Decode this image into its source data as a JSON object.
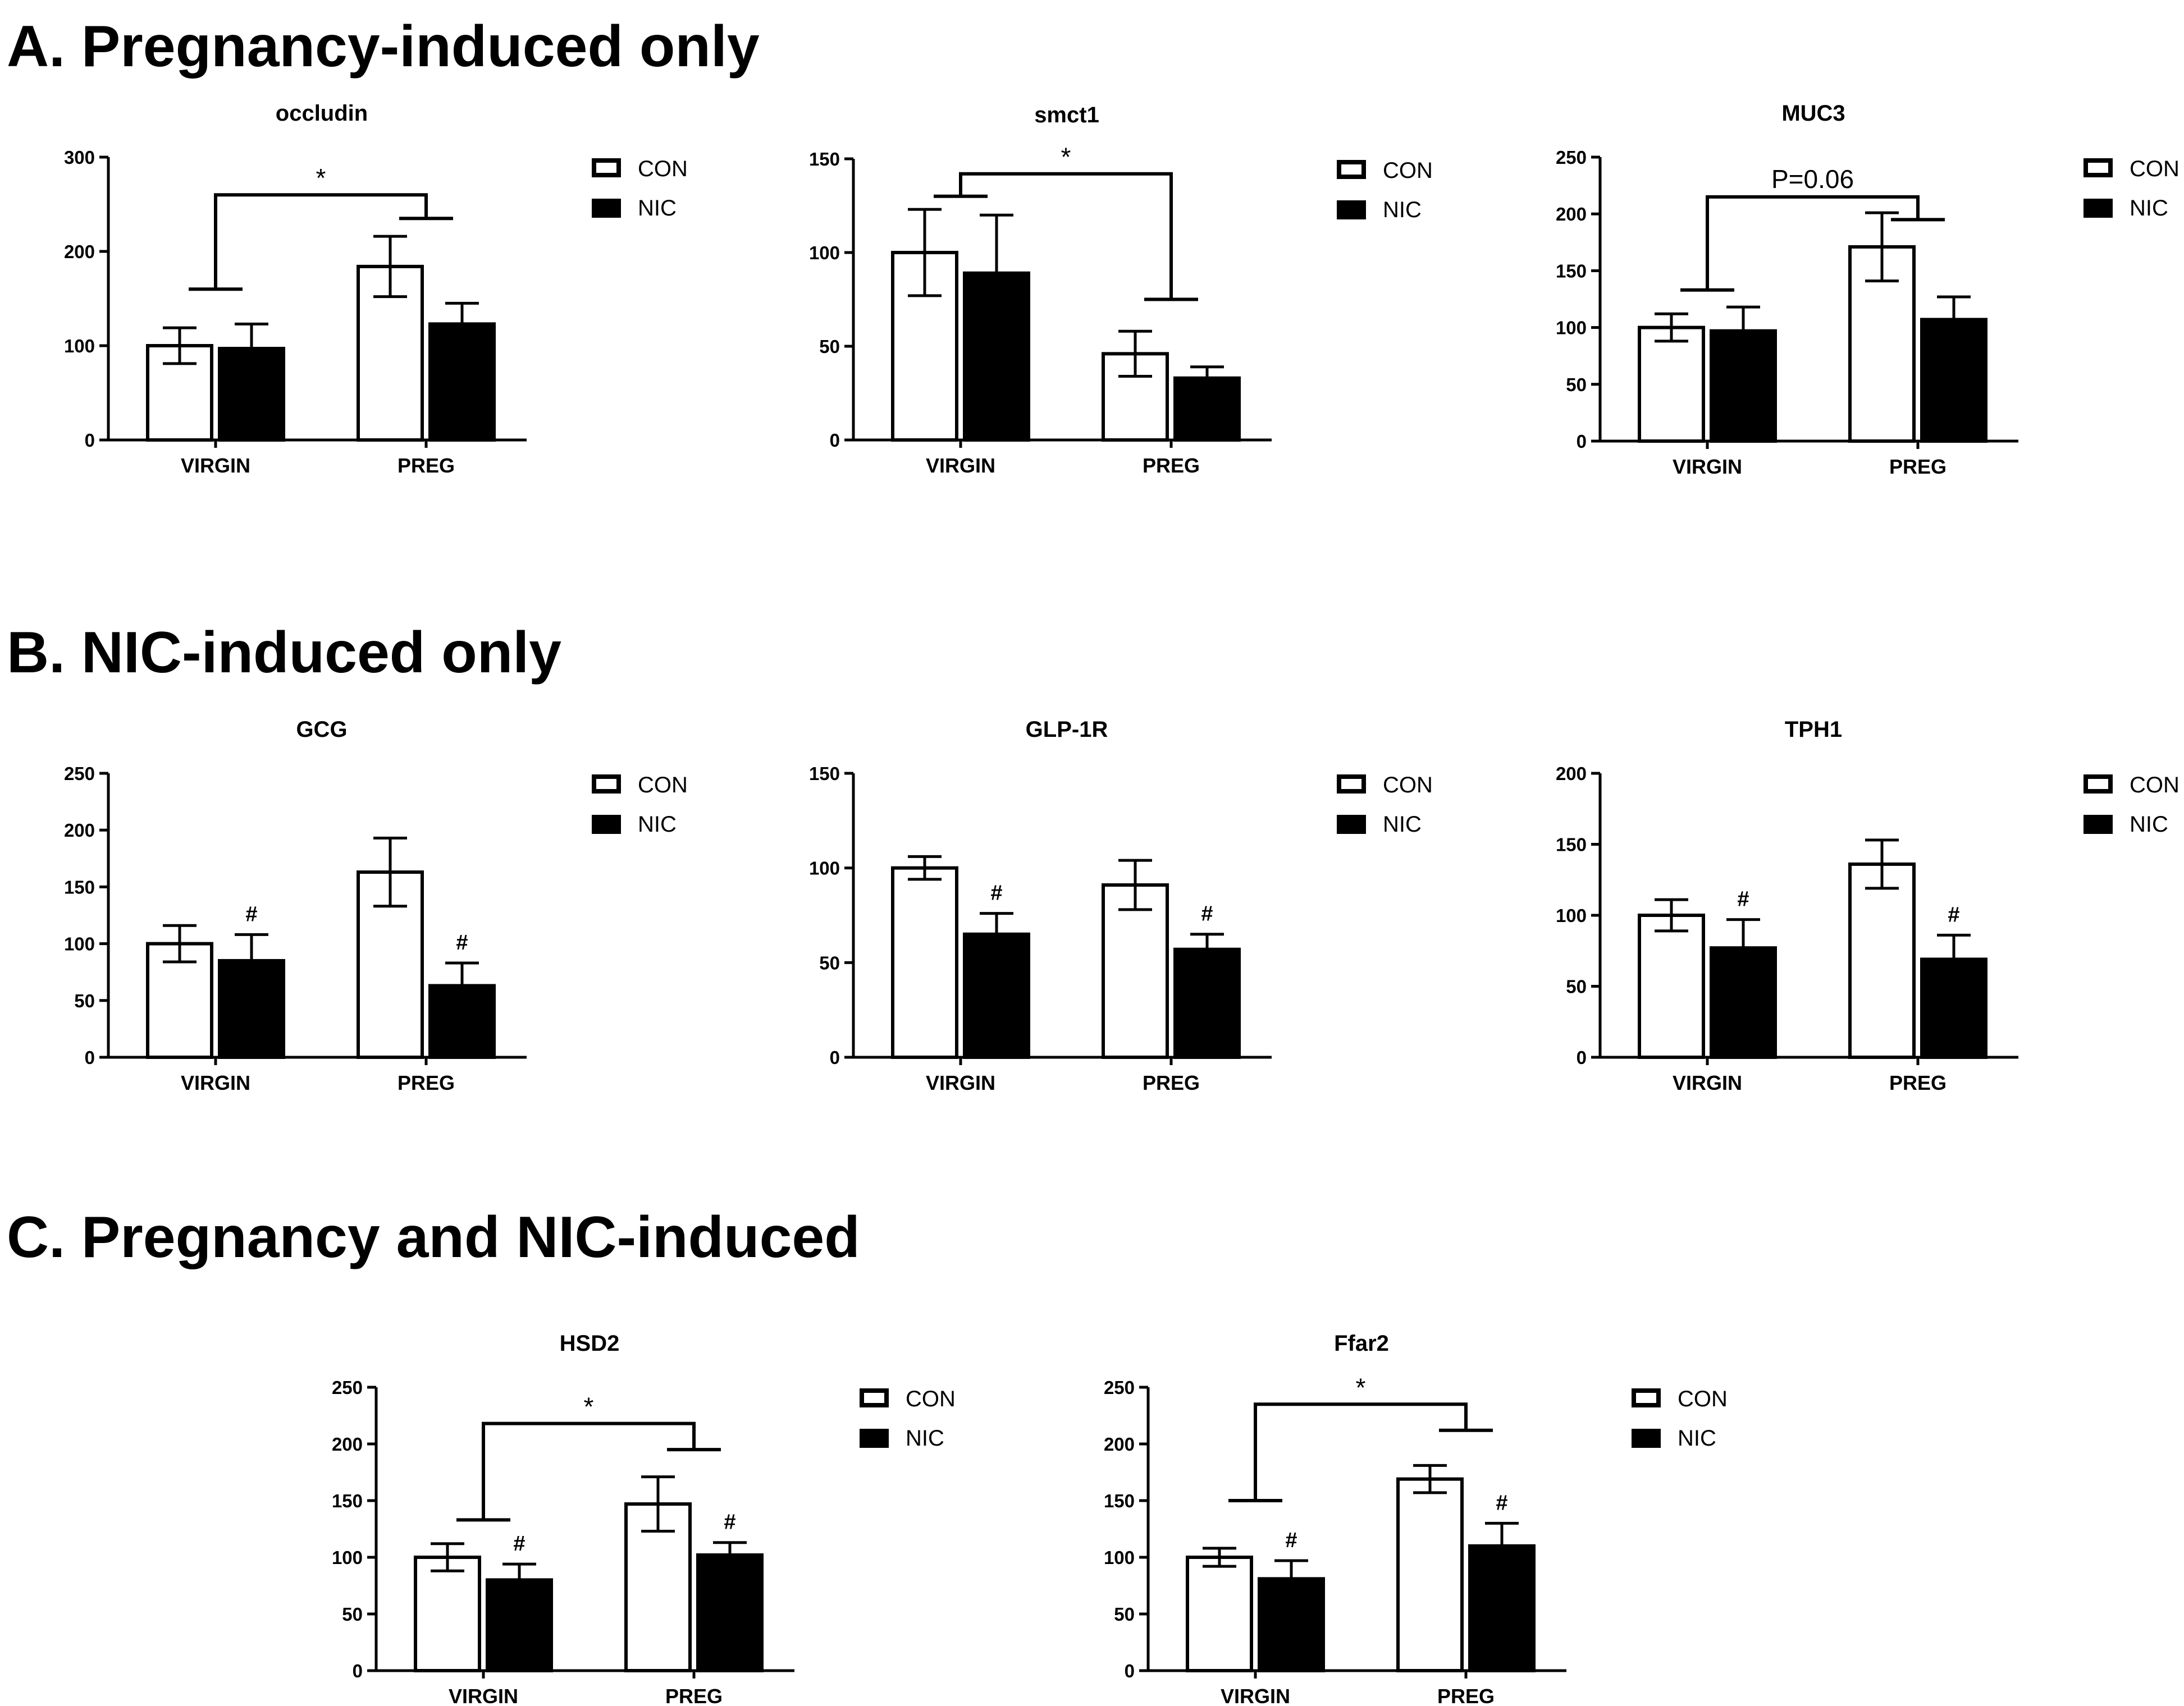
{
  "sections": [
    {
      "title": "A. Pregnancy-induced only"
    },
    {
      "title": "B. NIC-induced only"
    },
    {
      "title": "C. Pregnancy and NIC-induced"
    }
  ],
  "legend": {
    "con": "CON",
    "nic": "NIC"
  },
  "colors": {
    "con_fill": "#ffffff",
    "nic_fill": "#000000",
    "stroke": "#000000"
  },
  "chart_data": [
    {
      "id": "occludin",
      "type": "bar",
      "title": "occludin",
      "categories": [
        "VIRGIN",
        "PREG"
      ],
      "ylim": [
        0,
        300
      ],
      "yticks": [
        0,
        100,
        200,
        300
      ],
      "series": [
        {
          "name": "CON",
          "values": [
            100,
            184
          ],
          "errors": [
            19,
            32
          ]
        },
        {
          "name": "NIC",
          "values": [
            97,
            123
          ],
          "errors": [
            26,
            22
          ]
        }
      ],
      "significance": {
        "label": "*",
        "between": [
          "VIRGIN",
          "PREG"
        ],
        "left_level": 160,
        "right_level": 235,
        "top": 260
      },
      "hash_marks": []
    },
    {
      "id": "smct1",
      "type": "bar",
      "title": "smct1",
      "categories": [
        "VIRGIN",
        "PREG"
      ],
      "ylim": [
        0,
        150
      ],
      "yticks": [
        0,
        50,
        100,
        150
      ],
      "series": [
        {
          "name": "CON",
          "values": [
            100,
            46
          ],
          "errors": [
            23,
            12
          ]
        },
        {
          "name": "NIC",
          "values": [
            89,
            33
          ],
          "errors": [
            31,
            6
          ]
        }
      ],
      "significance": {
        "label": "*",
        "between": [
          "VIRGIN",
          "PREG"
        ],
        "left_level": 130,
        "right_level": 75,
        "top": 142
      },
      "hash_marks": []
    },
    {
      "id": "MUC3",
      "type": "bar",
      "title": "MUC3",
      "categories": [
        "VIRGIN",
        "PREG"
      ],
      "ylim": [
        0,
        250
      ],
      "yticks": [
        0,
        50,
        100,
        150,
        200,
        250
      ],
      "series": [
        {
          "name": "CON",
          "values": [
            100,
            171
          ],
          "errors": [
            12,
            30
          ]
        },
        {
          "name": "NIC",
          "values": [
            97,
            107
          ],
          "errors": [
            21,
            20
          ]
        }
      ],
      "significance": {
        "label": "P=0.06",
        "between": [
          "VIRGIN",
          "PREG"
        ],
        "left_level": 133,
        "right_level": 195,
        "top": 215
      },
      "hash_marks": []
    },
    {
      "id": "GCG",
      "type": "bar",
      "title": "GCG",
      "categories": [
        "VIRGIN",
        "PREG"
      ],
      "ylim": [
        0,
        250
      ],
      "yticks": [
        0,
        50,
        100,
        150,
        200,
        250
      ],
      "series": [
        {
          "name": "CON",
          "values": [
            100,
            163
          ],
          "errors": [
            16,
            30
          ]
        },
        {
          "name": "NIC",
          "values": [
            85,
            63
          ],
          "errors": [
            23,
            20
          ]
        }
      ],
      "significance": null,
      "hash_marks": [
        {
          "label": "#",
          "category": "VIRGIN",
          "series": "NIC"
        },
        {
          "label": "#",
          "category": "PREG",
          "series": "NIC"
        }
      ]
    },
    {
      "id": "GLP-1R",
      "type": "bar",
      "title": "GLP-1R",
      "categories": [
        "VIRGIN",
        "PREG"
      ],
      "ylim": [
        0,
        150
      ],
      "yticks": [
        0,
        50,
        100,
        150
      ],
      "series": [
        {
          "name": "CON",
          "values": [
            100,
            91
          ],
          "errors": [
            6,
            13
          ]
        },
        {
          "name": "NIC",
          "values": [
            65,
            57
          ],
          "errors": [
            11,
            8
          ]
        }
      ],
      "significance": null,
      "hash_marks": [
        {
          "label": "#",
          "category": "VIRGIN",
          "series": "NIC"
        },
        {
          "label": "#",
          "category": "PREG",
          "series": "NIC"
        }
      ]
    },
    {
      "id": "TPH1",
      "type": "bar",
      "title": "TPH1",
      "categories": [
        "VIRGIN",
        "PREG"
      ],
      "ylim": [
        0,
        200
      ],
      "yticks": [
        0,
        50,
        100,
        150,
        200
      ],
      "series": [
        {
          "name": "CON",
          "values": [
            100,
            136
          ],
          "errors": [
            11,
            17
          ]
        },
        {
          "name": "NIC",
          "values": [
            77,
            69
          ],
          "errors": [
            20,
            17
          ]
        }
      ],
      "significance": null,
      "hash_marks": [
        {
          "label": "#",
          "category": "VIRGIN",
          "series": "NIC"
        },
        {
          "label": "#",
          "category": "PREG",
          "series": "NIC"
        }
      ]
    },
    {
      "id": "HSD2",
      "type": "bar",
      "title": "HSD2",
      "categories": [
        "VIRGIN",
        "PREG"
      ],
      "ylim": [
        0,
        250
      ],
      "yticks": [
        0,
        50,
        100,
        150,
        200,
        250
      ],
      "series": [
        {
          "name": "CON",
          "values": [
            100,
            147
          ],
          "errors": [
            12,
            24
          ]
        },
        {
          "name": "NIC",
          "values": [
            80,
            102
          ],
          "errors": [
            14,
            11
          ]
        }
      ],
      "significance": {
        "label": "*",
        "between": [
          "VIRGIN",
          "PREG"
        ],
        "left_level": 133,
        "right_level": 195,
        "top": 218
      },
      "hash_marks": [
        {
          "label": "#",
          "category": "VIRGIN",
          "series": "NIC"
        },
        {
          "label": "#",
          "category": "PREG",
          "series": "NIC"
        }
      ]
    },
    {
      "id": "Ffar2",
      "type": "bar",
      "title": "Ffar2",
      "categories": [
        "VIRGIN",
        "PREG"
      ],
      "ylim": [
        0,
        250
      ],
      "yticks": [
        0,
        50,
        100,
        150,
        200,
        250
      ],
      "series": [
        {
          "name": "CON",
          "values": [
            100,
            169
          ],
          "errors": [
            8,
            12
          ]
        },
        {
          "name": "NIC",
          "values": [
            81,
            110
          ],
          "errors": [
            16,
            20
          ]
        }
      ],
      "significance": {
        "label": "*",
        "between": [
          "VIRGIN",
          "PREG"
        ],
        "left_level": 150,
        "right_level": 212,
        "top": 235
      },
      "hash_marks": [
        {
          "label": "#",
          "category": "VIRGIN",
          "series": "NIC"
        },
        {
          "label": "#",
          "category": "PREG",
          "series": "NIC"
        }
      ]
    }
  ]
}
